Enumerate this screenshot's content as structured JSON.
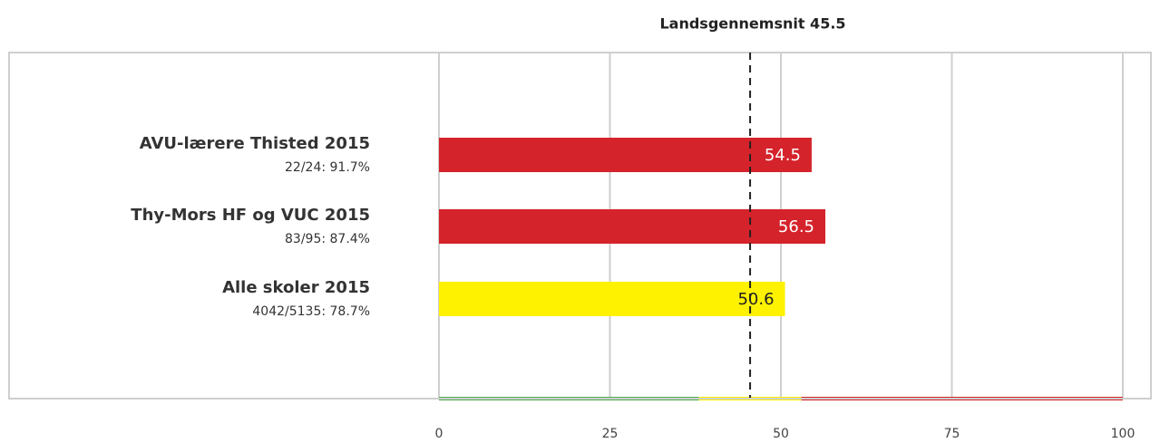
{
  "chart_data": {
    "type": "bar",
    "orientation": "horizontal",
    "annotation": "Landsgennemsnit 45.5",
    "reference": {
      "value": 45.5
    },
    "categories": [
      "AVU-lærere Thisted 2015",
      "Thy-Mors HF og VUC 2015",
      "Alle skoler 2015"
    ],
    "sublabels": [
      "22/24: 91.7%",
      "83/95: 87.4%",
      "4042/5135: 78.7%"
    ],
    "values": [
      54.5,
      56.5,
      50.6
    ],
    "colors": [
      "#d5232b",
      "#d5232b",
      "#fff200"
    ],
    "label_colors": [
      "#ffffff",
      "#ffffff",
      "#222222"
    ],
    "bands": [
      {
        "from": 0,
        "to": 38,
        "color": "#4caf50"
      },
      {
        "from": 38,
        "to": 53,
        "color": "#fff200"
      },
      {
        "from": 53,
        "to": 100,
        "color": "#d5232b"
      }
    ],
    "xlim": [
      0,
      100
    ],
    "xticks": [
      0,
      25,
      50,
      75,
      100
    ],
    "grid": true
  }
}
